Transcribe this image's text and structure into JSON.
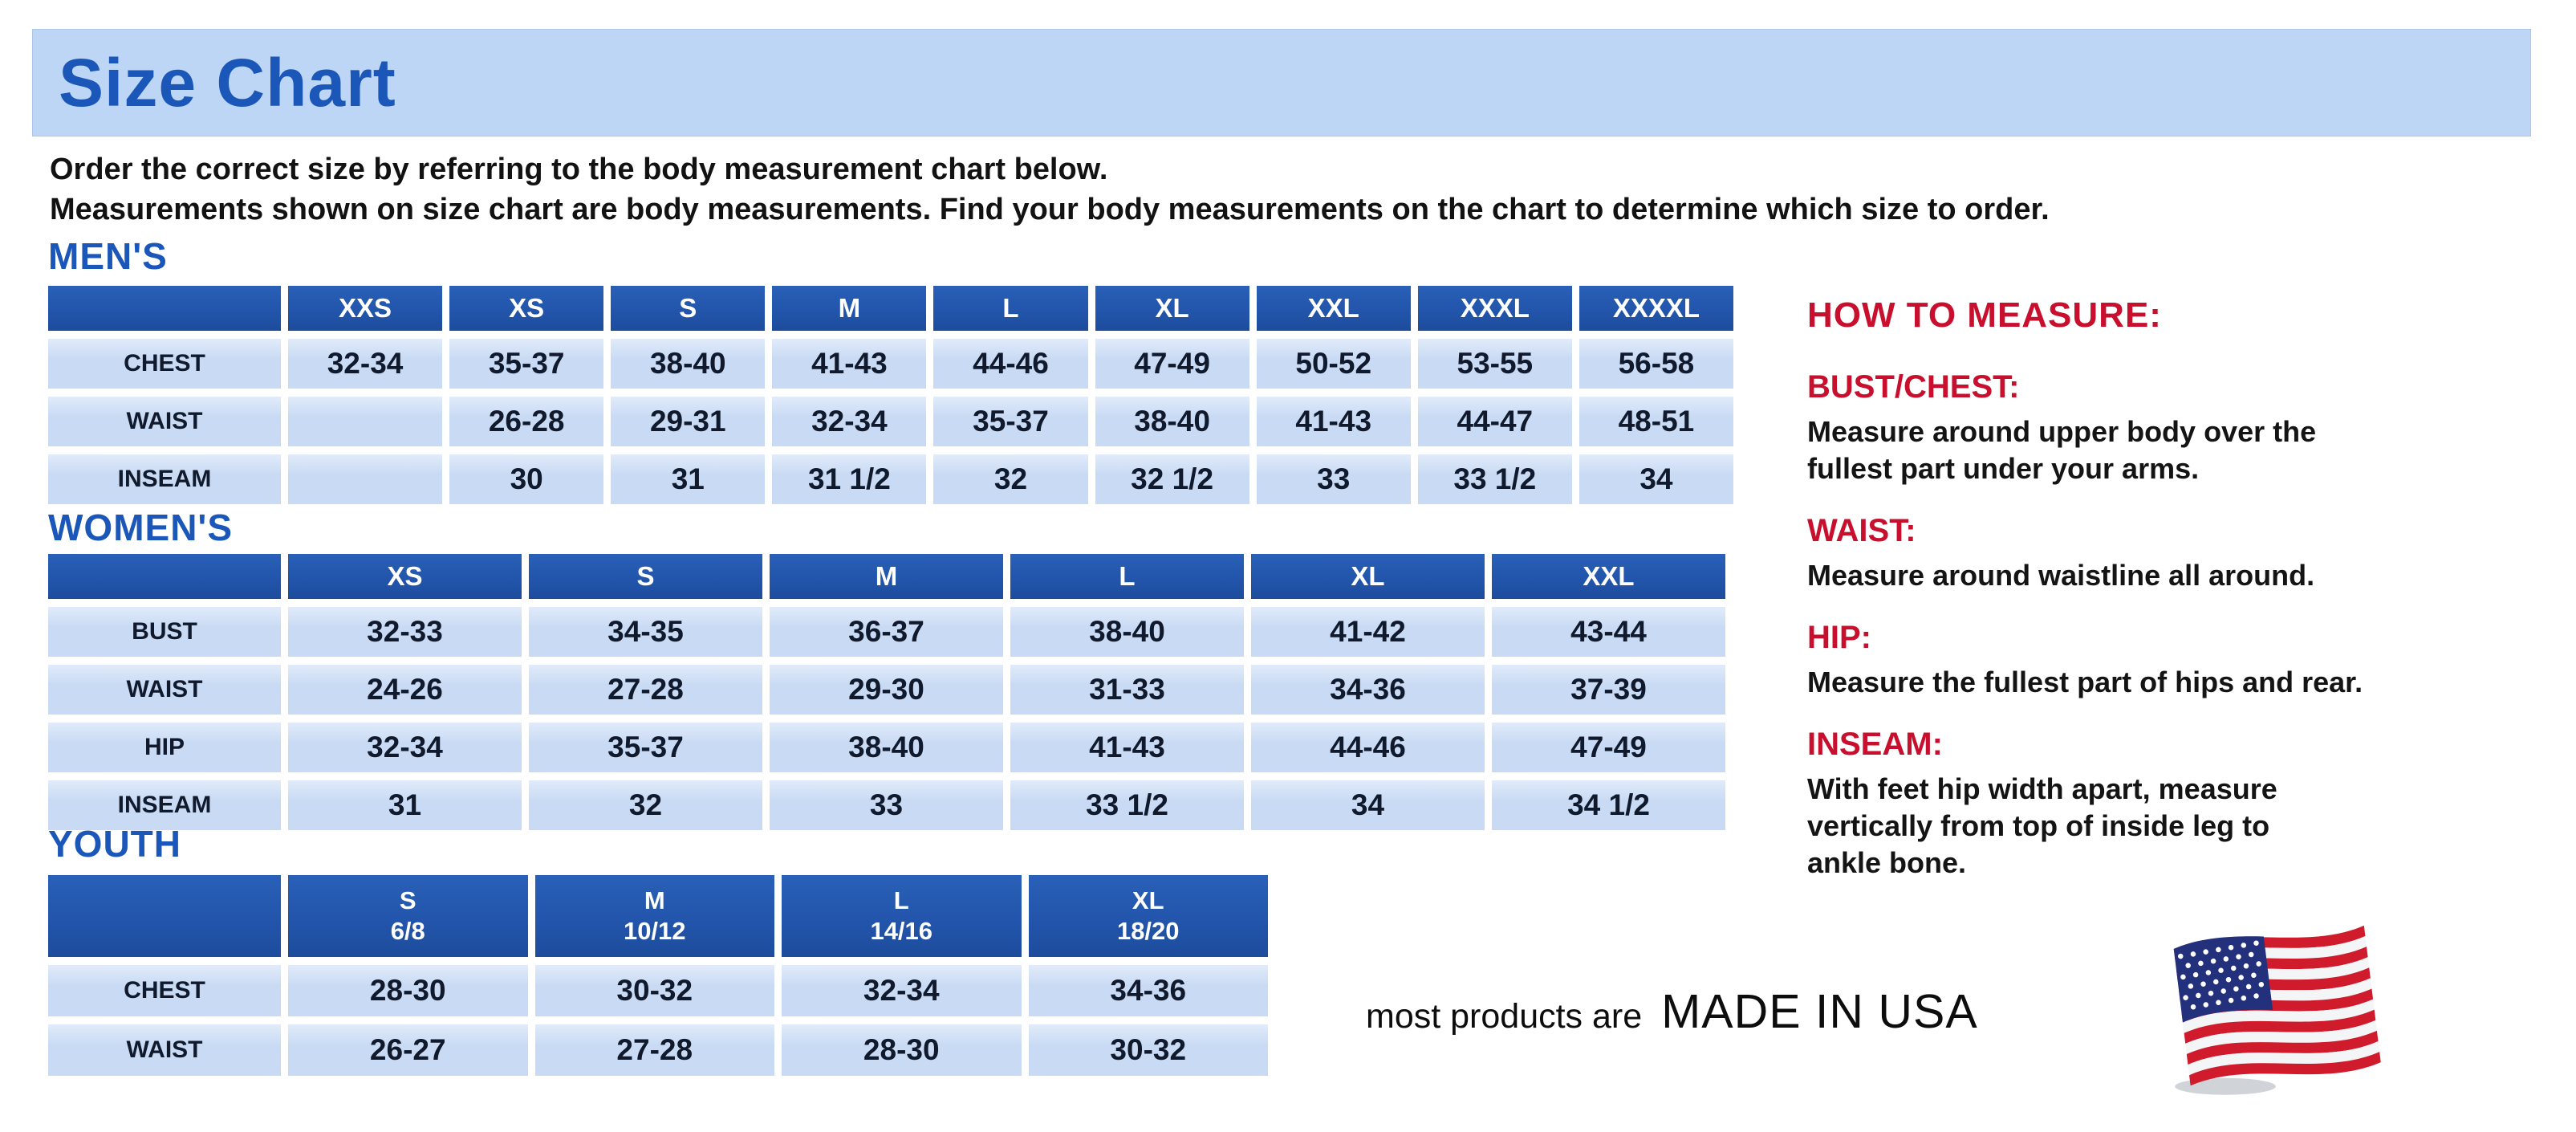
{
  "banner": {
    "title": "Size Chart"
  },
  "intro": {
    "line1": "Order the correct size by referring to the body measurement chart below.",
    "line2": "Measurements shown on size chart are body measurements.  Find your body measurements on the chart to determine which size to order."
  },
  "tables": {
    "mens": {
      "title": "MEN'S",
      "columns": [
        "XXS",
        "XS",
        "S",
        "M",
        "L",
        "XL",
        "XXL",
        "XXXL",
        "XXXXL"
      ],
      "rows": [
        {
          "label": "CHEST",
          "values": [
            "32-34",
            "35-37",
            "38-40",
            "41-43",
            "44-46",
            "47-49",
            "50-52",
            "53-55",
            "56-58"
          ]
        },
        {
          "label": "WAIST",
          "values": [
            "",
            "26-28",
            "29-31",
            "32-34",
            "35-37",
            "38-40",
            "41-43",
            "44-47",
            "48-51"
          ]
        },
        {
          "label": "INSEAM",
          "values": [
            "",
            "30",
            "31",
            "31 1/2",
            "32",
            "32 1/2",
            "33",
            "33 1/2",
            "34"
          ]
        }
      ]
    },
    "womens": {
      "title": "WOMEN'S",
      "columns": [
        "XS",
        "S",
        "M",
        "L",
        "XL",
        "XXL"
      ],
      "rows": [
        {
          "label": "BUST",
          "values": [
            "32-33",
            "34-35",
            "36-37",
            "38-40",
            "41-42",
            "43-44"
          ]
        },
        {
          "label": "WAIST",
          "values": [
            "24-26",
            "27-28",
            "29-30",
            "31-33",
            "34-36",
            "37-39"
          ]
        },
        {
          "label": "HIP",
          "values": [
            "32-34",
            "35-37",
            "38-40",
            "41-43",
            "44-46",
            "47-49"
          ]
        },
        {
          "label": "INSEAM",
          "values": [
            "31",
            "32",
            "33",
            "33 1/2",
            "34",
            "34 1/2"
          ]
        }
      ]
    },
    "youth": {
      "title": "YOUTH",
      "columns": [
        "S\n6/8",
        "M\n10/12",
        "L\n14/16",
        "XL\n18/20"
      ],
      "rows": [
        {
          "label": "CHEST",
          "values": [
            "28-30",
            "30-32",
            "32-34",
            "34-36"
          ]
        },
        {
          "label": "WAIST",
          "values": [
            "26-27",
            "27-28",
            "28-30",
            "30-32"
          ]
        }
      ]
    }
  },
  "how_to_measure": {
    "title": "HOW TO MEASURE:",
    "sections": [
      {
        "label": "BUST/CHEST:",
        "text": "Measure around upper body over the\nfullest part under your arms."
      },
      {
        "label": "WAIST:",
        "text": "Measure around waistline all around."
      },
      {
        "label": "HIP:",
        "text": "Measure the fullest part of hips and rear."
      },
      {
        "label": "INSEAM:",
        "text": "With feet hip width apart, measure\nvertically from top of inside leg to\nankle bone."
      }
    ]
  },
  "footer": {
    "prefix": "most products are",
    "emphasis": "MADE IN USA",
    "flag_icon": "usa-flag-icon"
  },
  "colors": {
    "banner_bg": "#bdd6f6",
    "heading_blue": "#1b57b8",
    "table_header_bg": "#2255ab",
    "cell_bg": "#c9dbf4",
    "red": "#c8102e",
    "flag_red": "#cf1b2b",
    "flag_blue": "#23307c",
    "text": "#101a2c"
  }
}
